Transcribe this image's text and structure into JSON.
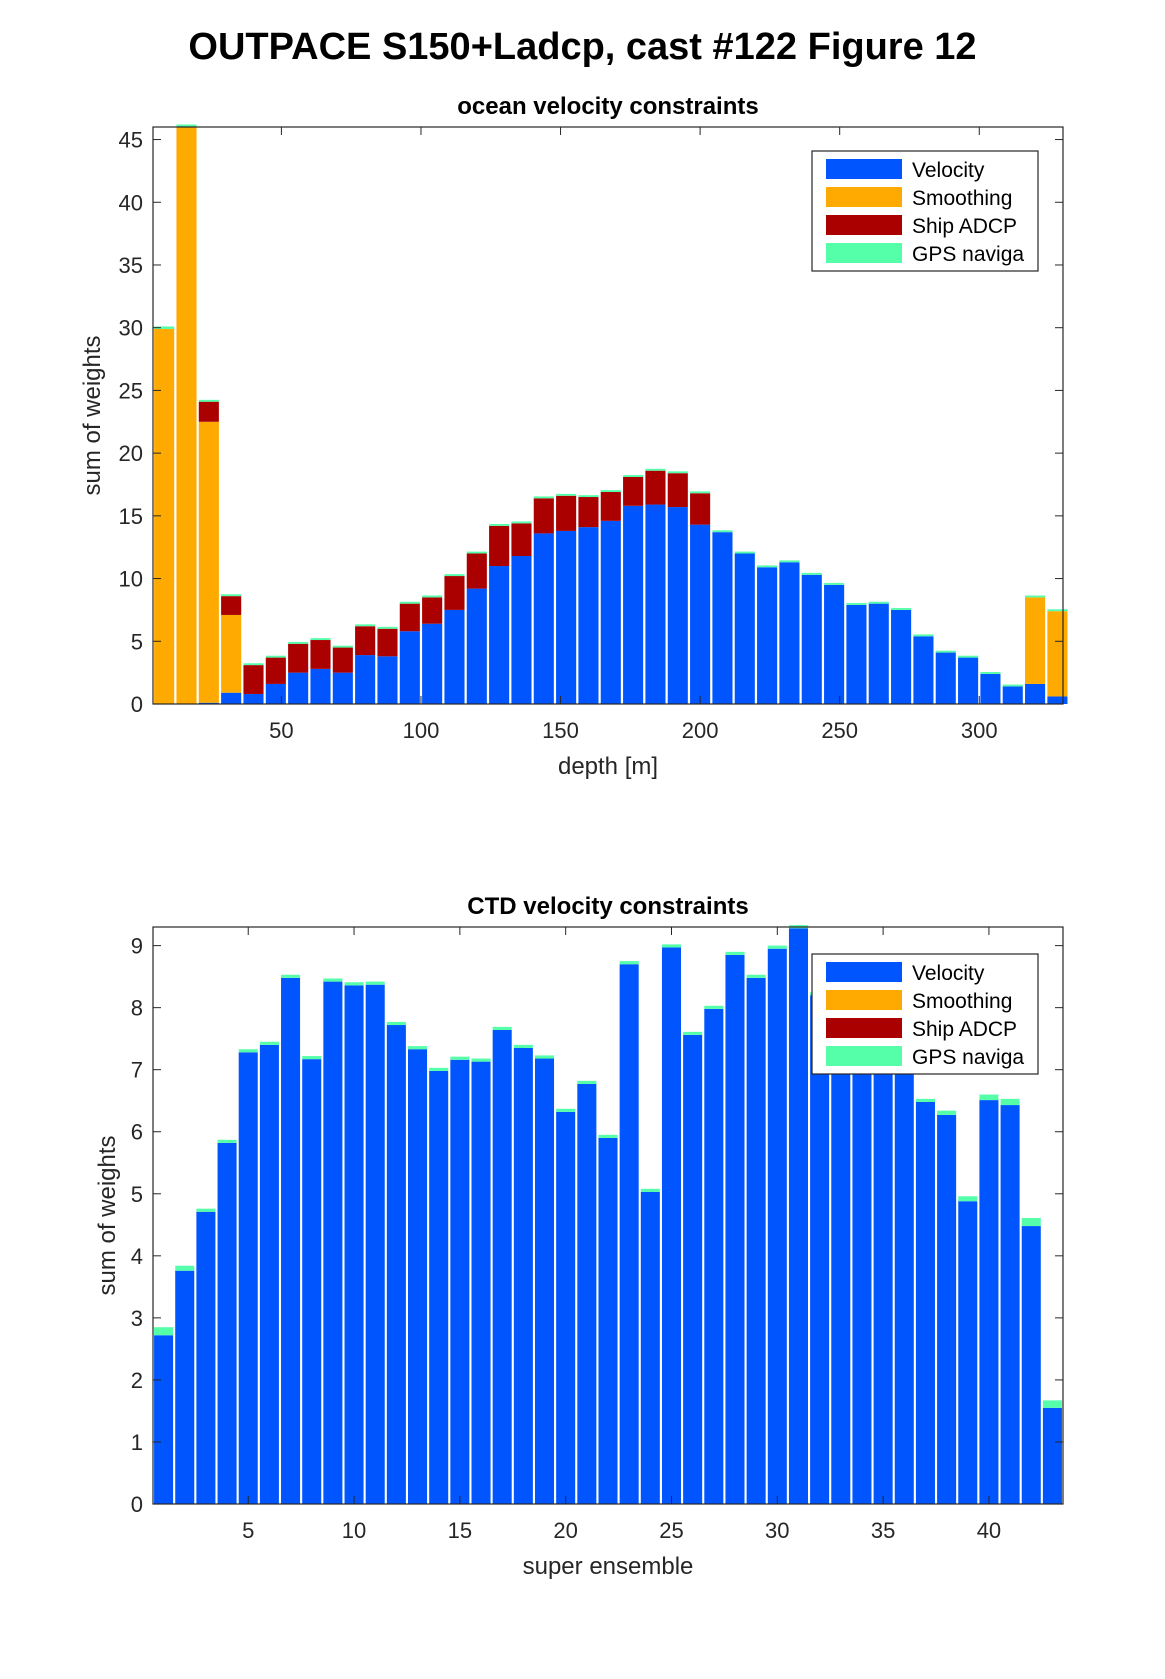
{
  "figure_title": "OUTPACE S150+Ladcp, cast #122  Figure 12",
  "colors": {
    "velocity": "#0055ff",
    "smoothing": "#ffaa00",
    "ship_adcp": "#aa0000",
    "gps": "#55ffaa"
  },
  "legend_labels": [
    "Velocity",
    "Smoothing",
    "Ship ADCP",
    "GPS naviga"
  ],
  "chart_data": [
    {
      "type": "bar",
      "stacked": true,
      "title": "ocean velocity constraints",
      "xlabel": "depth [m]",
      "ylabel": "sum of weights",
      "xlim": [
        4,
        330
      ],
      "ylim": [
        0,
        46
      ],
      "xticks": [
        50,
        100,
        150,
        200,
        250,
        300
      ],
      "yticks": [
        0,
        5,
        10,
        15,
        20,
        25,
        30,
        35,
        40,
        45
      ],
      "legend_position": "top-right",
      "x": [
        8,
        16,
        24,
        32,
        40,
        48,
        56,
        64,
        72,
        80,
        88,
        96,
        104,
        112,
        120,
        128,
        136,
        144,
        152,
        160,
        168,
        176,
        184,
        192,
        200,
        208,
        216,
        224,
        232,
        240,
        248,
        256,
        264,
        272,
        280,
        288,
        296,
        304,
        312,
        320,
        328
      ],
      "series": [
        {
          "name": "Velocity",
          "values": [
            0,
            0,
            0.1,
            0.9,
            0.8,
            1.6,
            2.5,
            2.8,
            2.5,
            3.9,
            3.8,
            5.8,
            6.4,
            7.5,
            9.2,
            11.0,
            11.8,
            13.6,
            13.8,
            14.1,
            14.6,
            15.8,
            15.9,
            15.7,
            14.3,
            13.7,
            12.0,
            10.9,
            11.3,
            10.3,
            9.5,
            7.9,
            8.0,
            7.5,
            5.4,
            4.1,
            3.7,
            2.4,
            1.4,
            1.6,
            0.6
          ]
        },
        {
          "name": "Smoothing",
          "values": [
            29.9,
            46.0,
            22.4,
            6.2,
            0,
            0,
            0,
            0,
            0,
            0,
            0,
            0,
            0,
            0,
            0,
            0,
            0,
            0,
            0,
            0,
            0,
            0,
            0,
            0,
            0,
            0,
            0,
            0,
            0,
            0,
            0,
            0,
            0,
            0,
            0,
            0,
            0,
            0,
            0,
            6.9,
            6.8
          ]
        },
        {
          "name": "Ship ADCP",
          "values": [
            0,
            0,
            1.6,
            1.5,
            2.3,
            2.1,
            2.3,
            2.3,
            2.0,
            2.3,
            2.2,
            2.2,
            2.1,
            2.7,
            2.8,
            3.2,
            2.6,
            2.8,
            2.8,
            2.4,
            2.3,
            2.3,
            2.7,
            2.7,
            2.5,
            0,
            0,
            0,
            0,
            0,
            0,
            0,
            0,
            0,
            0,
            0,
            0,
            0,
            0,
            0,
            0
          ]
        },
        {
          "name": "GPS naviga",
          "values": [
            0.2,
            0.2,
            0.15,
            0.15,
            0.15,
            0.15,
            0.15,
            0.15,
            0.15,
            0.15,
            0.15,
            0.15,
            0.15,
            0.15,
            0.15,
            0.15,
            0.15,
            0.15,
            0.15,
            0.15,
            0.15,
            0.15,
            0.15,
            0.15,
            0.15,
            0.15,
            0.15,
            0.15,
            0.15,
            0.15,
            0.15,
            0.15,
            0.15,
            0.15,
            0.15,
            0.15,
            0.15,
            0.15,
            0.15,
            0.15,
            0.15
          ]
        }
      ]
    },
    {
      "type": "bar",
      "stacked": true,
      "title": "CTD velocity constraints",
      "xlabel": "super ensemble",
      "ylabel": "sum of weights",
      "xlim": [
        0.5,
        43.5
      ],
      "ylim": [
        0,
        9.3
      ],
      "xticks": [
        5,
        10,
        15,
        20,
        25,
        30,
        35,
        40
      ],
      "yticks": [
        0,
        1,
        2,
        3,
        4,
        5,
        6,
        7,
        8,
        9
      ],
      "legend_position": "top-right",
      "x": [
        1,
        2,
        3,
        4,
        5,
        6,
        7,
        8,
        9,
        10,
        11,
        12,
        13,
        14,
        15,
        16,
        17,
        18,
        19,
        20,
        21,
        22,
        23,
        24,
        25,
        26,
        27,
        28,
        29,
        30,
        31,
        32,
        33,
        34,
        35,
        36,
        37,
        38,
        39,
        40,
        41,
        42,
        43
      ],
      "series": [
        {
          "name": "Velocity",
          "values": [
            2.72,
            3.76,
            4.71,
            5.82,
            7.28,
            7.4,
            8.48,
            7.17,
            8.42,
            8.36,
            8.37,
            7.72,
            7.33,
            6.98,
            7.16,
            7.13,
            7.64,
            7.35,
            7.18,
            6.32,
            6.77,
            5.9,
            8.7,
            5.03,
            8.97,
            7.56,
            7.98,
            8.85,
            8.48,
            8.95,
            9.28,
            8.2,
            8.1,
            7.8,
            7.5,
            7.2,
            6.48,
            6.27,
            4.88,
            6.51,
            6.43,
            4.48,
            1.55
          ]
        },
        {
          "name": "Smoothing",
          "values": [
            0,
            0,
            0,
            0,
            0,
            0,
            0,
            0,
            0,
            0,
            0,
            0,
            0,
            0,
            0,
            0,
            0,
            0,
            0,
            0,
            0,
            0,
            0,
            0,
            0,
            0,
            0,
            0,
            0,
            0,
            0,
            0,
            0,
            0,
            0,
            0,
            0,
            0,
            0,
            0,
            0,
            0,
            0
          ]
        },
        {
          "name": "Ship ADCP",
          "values": [
            0,
            0,
            0,
            0,
            0,
            0,
            0,
            0,
            0,
            0,
            0,
            0,
            0,
            0,
            0,
            0,
            0,
            0,
            0,
            0,
            0,
            0,
            0,
            0,
            0,
            0,
            0,
            0,
            0,
            0,
            0,
            0,
            0,
            0,
            0,
            0,
            0,
            0,
            0,
            0,
            0,
            0,
            0
          ]
        },
        {
          "name": "GPS naviga",
          "values": [
            0.13,
            0.08,
            0.05,
            0.05,
            0.05,
            0.05,
            0.05,
            0.05,
            0.05,
            0.05,
            0.05,
            0.05,
            0.05,
            0.05,
            0.05,
            0.05,
            0.05,
            0.05,
            0.05,
            0.05,
            0.05,
            0.05,
            0.05,
            0.05,
            0.05,
            0.05,
            0.05,
            0.05,
            0.05,
            0.05,
            0.05,
            0.05,
            0.05,
            0.05,
            0.05,
            0.05,
            0.05,
            0.07,
            0.08,
            0.09,
            0.1,
            0.13,
            0.12
          ]
        }
      ]
    }
  ]
}
